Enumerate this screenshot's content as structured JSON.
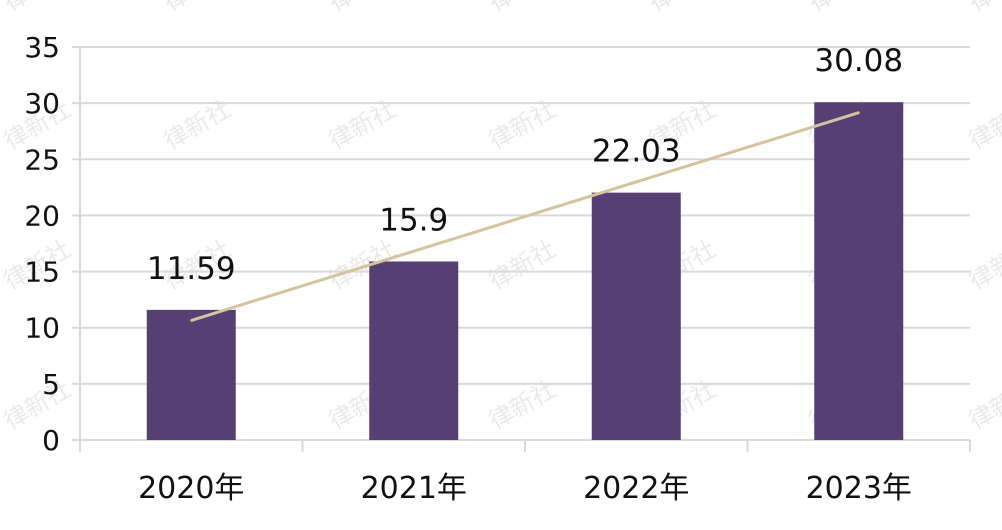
{
  "chart_data": {
    "type": "bar",
    "categories": [
      "2020年",
      "2021年",
      "2022年",
      "2023年"
    ],
    "series": [
      {
        "values": [
          11.59,
          15.9,
          22.03,
          30.08
        ],
        "color": "#553f73"
      }
    ],
    "data_labels": [
      "11.59",
      "15.9",
      "22.03",
      "30.08"
    ],
    "trendline": {
      "type": "linear",
      "color": "#d4c39c"
    },
    "ylim": [
      0,
      35
    ],
    "yticks": [
      0,
      5,
      10,
      15,
      20,
      25,
      30,
      35
    ],
    "grid": true,
    "legend": "none"
  },
  "watermark": {
    "text": "律新社",
    "color": "#d8d8d8"
  }
}
